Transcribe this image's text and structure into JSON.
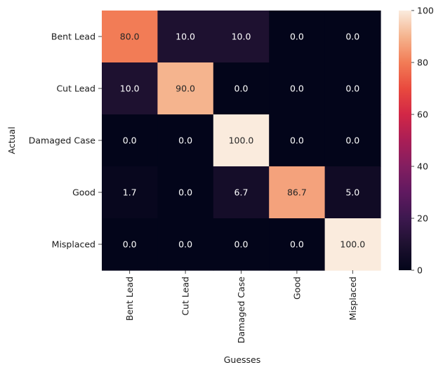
{
  "chart_data": {
    "type": "heatmap",
    "title": "",
    "xlabel": "Guesses",
    "ylabel": "Actual",
    "x_categories": [
      "Bent Lead",
      "Cut Lead",
      "Damaged Case",
      "Good",
      "Misplaced"
    ],
    "y_categories": [
      "Bent Lead",
      "Cut Lead",
      "Damaged Case",
      "Good",
      "Misplaced"
    ],
    "values": [
      [
        80.0,
        10.0,
        10.0,
        0.0,
        0.0
      ],
      [
        10.0,
        90.0,
        0.0,
        0.0,
        0.0
      ],
      [
        0.0,
        0.0,
        100.0,
        0.0,
        0.0
      ],
      [
        1.7,
        0.0,
        6.7,
        86.7,
        5.0
      ],
      [
        0.0,
        0.0,
        0.0,
        0.0,
        100.0
      ]
    ],
    "value_format": "0.0",
    "colorbar": {
      "colormap": "rocket",
      "range": [
        0,
        100
      ],
      "ticks": [
        0,
        20,
        40,
        60,
        80,
        100
      ],
      "position": "right"
    },
    "grid": false
  }
}
